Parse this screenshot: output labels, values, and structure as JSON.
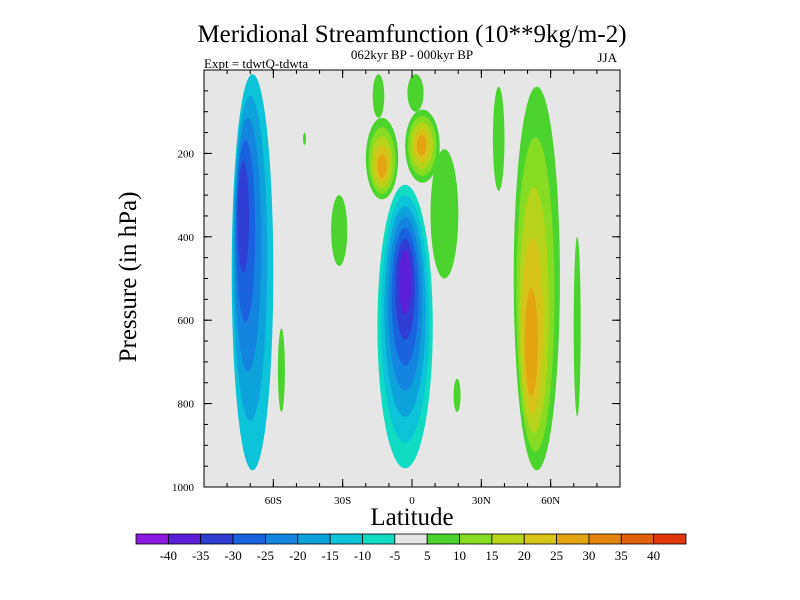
{
  "chart_data": {
    "type": "contour",
    "title": "Meridional Streamfunction (10**9kg/m-2)",
    "subtitle": "062kyr BP - 000kyr BP",
    "experiment_label": "Expt = tdwtQ-tdwta",
    "season_label": "JJA",
    "xlabel": "Latitude",
    "ylabel": "Pressure (in hPa)",
    "xlim": [
      -90,
      90
    ],
    "ylim": [
      1000,
      0
    ],
    "x_ticks": [
      {
        "value": -60,
        "label": "60S"
      },
      {
        "value": -30,
        "label": "30S"
      },
      {
        "value": 0,
        "label": "0"
      },
      {
        "value": 30,
        "label": "30N"
      },
      {
        "value": 60,
        "label": "60N"
      }
    ],
    "y_ticks": [
      {
        "value": 200,
        "label": "200"
      },
      {
        "value": 400,
        "label": "400"
      },
      {
        "value": 600,
        "label": "600"
      },
      {
        "value": 800,
        "label": "800"
      },
      {
        "value": 1000,
        "label": "1000"
      }
    ],
    "background_color": "#e6e6e6",
    "colorbar": {
      "labels": [
        "-40",
        "-35",
        "-30",
        "-25",
        "-20",
        "-15",
        "-10",
        "-5",
        "5",
        "10",
        "15",
        "20",
        "25",
        "30",
        "35",
        "40"
      ],
      "colors": [
        "#8a1ae0",
        "#5a20d8",
        "#2f3ed2",
        "#1a62de",
        "#1385e0",
        "#0ea2dc",
        "#0cc4d8",
        "#10dcc4",
        "#e6e6e6",
        "#4cd42e",
        "#86dc22",
        "#b8d41a",
        "#d8c416",
        "#e2a410",
        "#e4840c",
        "#e2620a",
        "#e0380c"
      ]
    },
    "features": [
      {
        "name": "south-cell",
        "lat": [
          -78,
          -60
        ],
        "p": [
          10,
          960
        ],
        "core_lat": -74,
        "core_p": 320,
        "peak": -30,
        "levels": [
          -10,
          -15,
          -20,
          -25,
          -30
        ]
      },
      {
        "name": "tropical-cell",
        "lat": [
          -15,
          9
        ],
        "p": [
          275,
          955
        ],
        "core_lat": -3,
        "core_p": 490,
        "peak": -35,
        "levels": [
          -5,
          -10,
          -15,
          -20,
          -25,
          -30,
          -35
        ]
      },
      {
        "name": "upper-pos-a",
        "lat": [
          -20,
          -6
        ],
        "p": [
          115,
          310
        ],
        "core_lat": -13,
        "core_p": 235,
        "peak": 25,
        "levels": [
          5,
          10,
          15,
          20,
          25
        ]
      },
      {
        "name": "upper-pos-b",
        "lat": [
          -3,
          12
        ],
        "p": [
          95,
          270
        ],
        "core_lat": 4,
        "core_p": 180,
        "peak": 25,
        "levels": [
          5,
          10,
          15,
          20,
          25
        ]
      },
      {
        "name": "upper-pos-c",
        "lat": [
          -17,
          -12
        ],
        "p": [
          10,
          115
        ],
        "core_lat": -15,
        "core_p": 60,
        "peak": 5,
        "levels": [
          5
        ]
      },
      {
        "name": "upper-pos-d",
        "lat": [
          -2,
          5
        ],
        "p": [
          10,
          100
        ],
        "core_lat": 1,
        "core_p": 60,
        "peak": 5,
        "levels": [
          5
        ]
      },
      {
        "name": "tropic-flank-pos",
        "lat": [
          8,
          20
        ],
        "p": [
          190,
          500
        ],
        "core_lat": 14,
        "core_p": 350,
        "peak": 5,
        "levels": [
          5
        ]
      },
      {
        "name": "sub-pos-a",
        "lat": [
          -35,
          -28
        ],
        "p": [
          300,
          470
        ],
        "core_lat": -31,
        "core_p": 380,
        "peak": 5,
        "levels": [
          5
        ]
      },
      {
        "name": "north-cell",
        "lat": [
          44,
          64
        ],
        "p": [
          40,
          960
        ],
        "core_lat": 51,
        "core_p": 690,
        "peak": 25,
        "levels": [
          5,
          10,
          15,
          20,
          25
        ]
      },
      {
        "name": "north-side",
        "lat": [
          35,
          40
        ],
        "p": [
          40,
          290
        ],
        "core_lat": 37,
        "core_p": 140,
        "peak": 5,
        "levels": [
          5
        ]
      },
      {
        "name": "north-far",
        "lat": [
          70,
          73
        ],
        "p": [
          400,
          830
        ],
        "core_lat": 71.5,
        "core_p": 610,
        "peak": 5,
        "levels": [
          5
        ]
      },
      {
        "name": "small-pos-a",
        "lat": [
          -58,
          -55
        ],
        "p": [
          620,
          820
        ],
        "core_lat": -56.5,
        "core_p": 720,
        "peak": 5,
        "levels": [
          5
        ]
      },
      {
        "name": "small-pos-b",
        "lat": [
          18,
          21
        ],
        "p": [
          740,
          820
        ],
        "core_lat": 19.5,
        "core_p": 780,
        "peak": 5,
        "levels": [
          5
        ]
      },
      {
        "name": "small-pos-c",
        "lat": [
          -47,
          -46
        ],
        "p": [
          150,
          180
        ],
        "core_lat": -46.5,
        "core_p": 165,
        "peak": 5,
        "levels": [
          5
        ]
      }
    ]
  }
}
